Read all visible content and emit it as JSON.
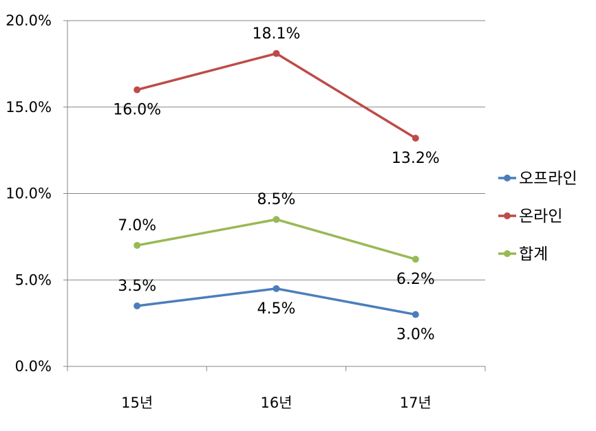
{
  "chart_data": {
    "type": "line",
    "categories": [
      "15년",
      "16년",
      "17년"
    ],
    "ylim": [
      0,
      20
    ],
    "y_ticks": [
      "0.0%",
      "5.0%",
      "10.0%",
      "15.0%",
      "20.0%"
    ],
    "grid": true,
    "legend_position": "right",
    "series": [
      {
        "name": "오프라인",
        "color": "#4a7ebb",
        "values": [
          3.5,
          4.5,
          3.0
        ],
        "labels": [
          "3.5%",
          "4.5%",
          "3.0%"
        ]
      },
      {
        "name": "온라인",
        "color": "#be4b48",
        "values": [
          16.0,
          18.1,
          13.2
        ],
        "labels": [
          "16.0%",
          "18.1%",
          "13.2%"
        ]
      },
      {
        "name": "합계",
        "color": "#98b954",
        "values": [
          7.0,
          8.5,
          6.2
        ],
        "labels": [
          "7.0%",
          "8.5%",
          "6.2%"
        ]
      }
    ]
  }
}
